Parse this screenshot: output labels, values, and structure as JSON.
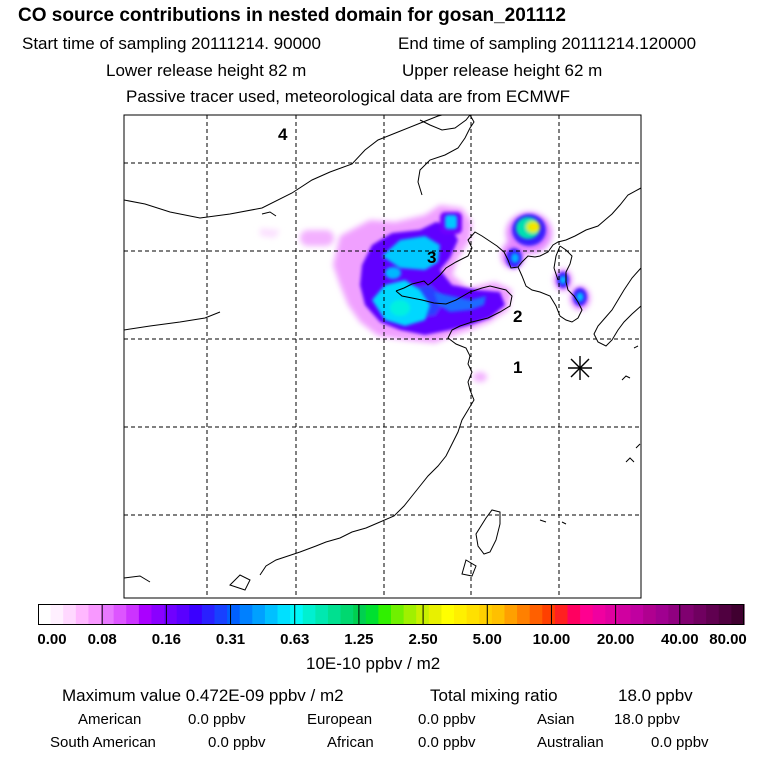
{
  "title": "CO  source contributions in nested domain for gosan_201112",
  "sampling": {
    "start_label": "Start time of sampling 20111214. 90000",
    "end_label": "End time of sampling 20111214.120000"
  },
  "release": {
    "lower_label": "Lower release height   82 m",
    "upper_label": "Upper release height   62 m"
  },
  "tracer_note": "Passive tracer used, meteorological data are from ECMWF",
  "map": {
    "site_labels": [
      "1",
      "2",
      "3",
      "4"
    ],
    "receptor_marker": "asterisk-icon",
    "grid": "dashed"
  },
  "colorbar": {
    "ticks": [
      "0.00",
      "0.08",
      "0.16",
      "0.31",
      "0.63",
      "1.25",
      "2.50",
      "5.00",
      "10.00",
      "20.00",
      "40.00",
      "80.00"
    ],
    "colors": [
      "#ffffff",
      "#fff0ff",
      "#ffd8ff",
      "#ffb8ff",
      "#f898ff",
      "#e878ff",
      "#dd55ff",
      "#cc33ff",
      "#aa00ff",
      "#8a00ff",
      "#7000ff",
      "#5a00ff",
      "#3a00ff",
      "#2a20ff",
      "#1840ff",
      "#0060ff",
      "#0080ff",
      "#00a0ff",
      "#00c0ff",
      "#00e0ff",
      "#00f8f8",
      "#00f0d0",
      "#00e8b0",
      "#00e090",
      "#00d870",
      "#00d050",
      "#00e030",
      "#30f000",
      "#70f000",
      "#a0f000",
      "#c8f000",
      "#e8f000",
      "#ffff00",
      "#fff000",
      "#ffe000",
      "#ffd000",
      "#ffc000",
      "#ffa000",
      "#ff8000",
      "#ff6000",
      "#ff4000",
      "#ff2020",
      "#ff0060",
      "#ff0090",
      "#f000a0",
      "#e000a0",
      "#d000a0",
      "#c000a0",
      "#b00090",
      "#a00090",
      "#900080",
      "#800070",
      "#700060",
      "#600050",
      "#500040",
      "#400030"
    ],
    "units": "10E-10 ppbv / m2"
  },
  "stats": {
    "max_label": "Maximum value  0.472E-09 ppbv / m2",
    "total_label": "Total mixing ratio",
    "total_value": "18.0 ppbv"
  },
  "regions": [
    {
      "name": "American",
      "value": "0.0 ppbv"
    },
    {
      "name": "European",
      "value": "0.0 ppbv"
    },
    {
      "name": "Asian",
      "value": "18.0 ppbv"
    },
    {
      "name": "South American",
      "value": "0.0 ppbv"
    },
    {
      "name": "African",
      "value": "0.0 ppbv"
    },
    {
      "name": "Australian",
      "value": "0.0 ppbv"
    }
  ]
}
